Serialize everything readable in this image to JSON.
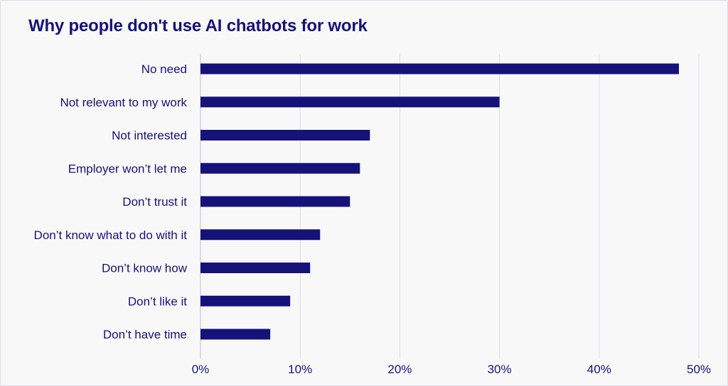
{
  "chart_data": {
    "type": "bar",
    "orientation": "horizontal",
    "title": "Why people don't use AI chatbots for work",
    "xlabel": "",
    "ylabel": "",
    "categories": [
      "No need",
      "Not relevant to my work",
      "Not interested",
      "Employer won’t let me",
      "Don’t trust it",
      "Don’t know what to do with it",
      "Don’t know how",
      "Don’t like it",
      "Don’t have time"
    ],
    "values": [
      48,
      30,
      17,
      16,
      15,
      12,
      11,
      9,
      7
    ],
    "xlim": [
      0,
      50
    ],
    "xticks": [
      0,
      10,
      20,
      30,
      40,
      50
    ],
    "xtick_labels": [
      "0%",
      "10%",
      "20%",
      "30%",
      "40%",
      "50%"
    ],
    "grid": "vertical",
    "legend": "none",
    "colors": {
      "bar": "#15127a",
      "text": "#15127a",
      "grid": "#dcdde3",
      "background": "#f8f8f9"
    }
  }
}
